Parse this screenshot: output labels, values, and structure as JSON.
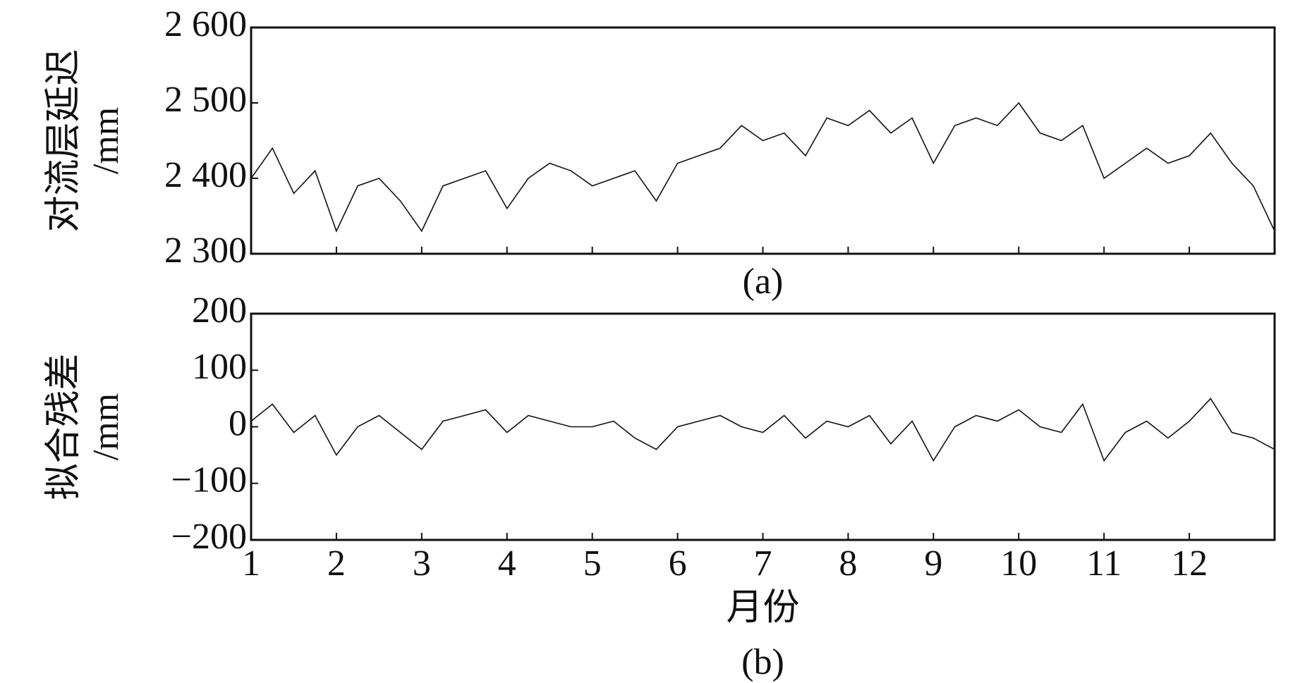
{
  "chart_data": [
    {
      "type": "line",
      "ylabel": [
        "对流层延迟",
        "/mm"
      ],
      "caption": "(a)",
      "x": [
        1,
        1.25,
        1.5,
        1.75,
        2,
        2.25,
        2.5,
        2.75,
        3,
        3.25,
        3.5,
        3.75,
        4,
        4.25,
        4.5,
        4.75,
        5,
        5.25,
        5.5,
        5.75,
        6,
        6.25,
        6.5,
        6.75,
        7,
        7.25,
        7.5,
        7.75,
        8,
        8.25,
        8.5,
        8.75,
        9,
        9.25,
        9.5,
        9.75,
        10,
        10.25,
        10.5,
        10.75,
        11,
        11.25,
        11.5,
        11.75,
        12,
        12.25,
        12.5,
        12.75,
        13
      ],
      "series": [
        {
          "color": "#111111",
          "values": [
            2400,
            2440,
            2380,
            2410,
            2330,
            2390,
            2400,
            2370,
            2330,
            2390,
            2400,
            2410,
            2360,
            2400,
            2420,
            2410,
            2390,
            2400,
            2410,
            2370,
            2420,
            2430,
            2440,
            2470,
            2450,
            2460,
            2430,
            2480,
            2470,
            2490,
            2460,
            2480,
            2420,
            2470,
            2480,
            2470,
            2500,
            2460,
            2450,
            2470,
            2400,
            2420,
            2440,
            2420,
            2430,
            2460,
            2420,
            2390,
            2330
          ]
        }
      ],
      "xlim": [
        1,
        13
      ],
      "xticks": [
        1,
        2,
        3,
        4,
        5,
        6,
        7,
        8,
        9,
        10,
        11,
        12
      ],
      "ylim": [
        2300,
        2600
      ],
      "yticks": [
        {
          "value": 2300,
          "label": "2 300"
        },
        {
          "value": 2400,
          "label": "2 400"
        },
        {
          "value": 2500,
          "label": "2 500"
        },
        {
          "value": 2600,
          "label": "2 600"
        }
      ],
      "show_xtick_labels": false
    },
    {
      "type": "line",
      "ylabel": [
        "拟合残差",
        "/mm"
      ],
      "caption": "(b)",
      "xlabel": "月份",
      "x": [
        1,
        1.25,
        1.5,
        1.75,
        2,
        2.25,
        2.5,
        2.75,
        3,
        3.25,
        3.5,
        3.75,
        4,
        4.25,
        4.5,
        4.75,
        5,
        5.25,
        5.5,
        5.75,
        6,
        6.25,
        6.5,
        6.75,
        7,
        7.25,
        7.5,
        7.75,
        8,
        8.25,
        8.5,
        8.75,
        9,
        9.25,
        9.5,
        9.75,
        10,
        10.25,
        10.5,
        10.75,
        11,
        11.25,
        11.5,
        11.75,
        12,
        12.25,
        12.5,
        12.75,
        13
      ],
      "series": [
        {
          "color": "#111111",
          "values": [
            10,
            40,
            -10,
            20,
            -50,
            0,
            20,
            -10,
            -40,
            10,
            20,
            30,
            -10,
            20,
            10,
            0,
            0,
            10,
            -20,
            -40,
            0,
            10,
            20,
            0,
            -10,
            20,
            -20,
            10,
            0,
            20,
            -30,
            10,
            -60,
            0,
            20,
            10,
            30,
            0,
            -10,
            40,
            -60,
            -10,
            10,
            -20,
            10,
            50,
            -10,
            -20,
            -40
          ]
        }
      ],
      "xlim": [
        1,
        13
      ],
      "xticks": [
        1,
        2,
        3,
        4,
        5,
        6,
        7,
        8,
        9,
        10,
        11,
        12
      ],
      "ylim": [
        -200,
        200
      ],
      "yticks": [
        {
          "value": -200,
          "label": "−200"
        },
        {
          "value": -100,
          "label": "−100"
        },
        0,
        100,
        200
      ],
      "show_xtick_labels": true
    }
  ]
}
